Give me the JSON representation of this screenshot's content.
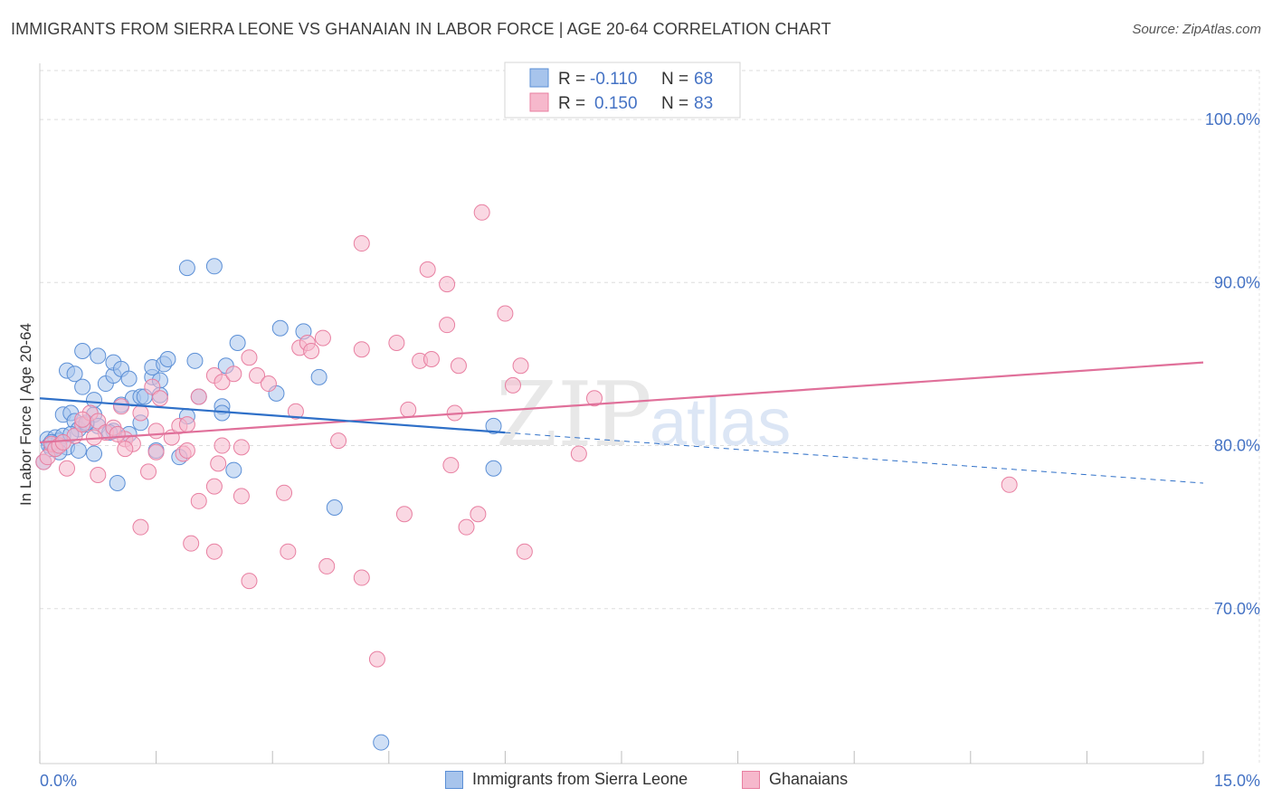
{
  "title": "IMMIGRANTS FROM SIERRA LEONE VS GHANAIAN IN LABOR FORCE | AGE 20-64 CORRELATION CHART",
  "source": "Source: ZipAtlas.com",
  "watermark": {
    "zip": "ZIP",
    "atlas": "atlas"
  },
  "colors": {
    "blue_fill": "#a7c4ec",
    "blue_stroke": "#5b8fd6",
    "blue_line": "#2f70c8",
    "pink_fill": "#f6b8cc",
    "pink_stroke": "#e87fa1",
    "pink_line": "#e0709a",
    "axis_text": "#4472c4",
    "grid": "#dddddd"
  },
  "legend": {
    "rows": [
      {
        "r_label": "R =",
        "r_value": "-0.110",
        "n_label": "N =",
        "n_value": "68"
      },
      {
        "r_label": "R =",
        "r_value": "0.150",
        "n_label": "N =",
        "n_value": "83"
      }
    ]
  },
  "bottom_legend": {
    "series1": "Immigrants from Sierra Leone",
    "series2": "Ghanaians"
  },
  "chart_data": {
    "type": "scatter",
    "title": "IMMIGRANTS FROM SIERRA LEONE VS GHANAIAN IN LABOR FORCE | AGE 20-64 CORRELATION CHART",
    "xlabel": "",
    "ylabel": "In Labor Force | Age 20-64",
    "xlim": [
      0,
      15
    ],
    "ylim": [
      60.5,
      103
    ],
    "x_tick_labels": [
      "0.0%",
      "15.0%"
    ],
    "y_ticks": [
      70,
      80,
      90,
      100
    ],
    "y_tick_labels": [
      "70.0%",
      "80.0%",
      "90.0%",
      "100.0%"
    ],
    "grid": true,
    "legend_position": "top-center",
    "series": [
      {
        "name": "Immigrants from Sierra Leone",
        "r": -0.11,
        "n": 68,
        "trend": {
          "x0": 0,
          "y0": 82.9,
          "x1": 6.0,
          "y1": 80.8,
          "dashed_to_x": 15.0,
          "dashed_to_y": 77.7
        },
        "points": [
          [
            0.05,
            79.0
          ],
          [
            0.1,
            80.4
          ],
          [
            0.12,
            80.0
          ],
          [
            0.15,
            79.8
          ],
          [
            0.2,
            80.5
          ],
          [
            0.25,
            80.3
          ],
          [
            0.3,
            80.6
          ],
          [
            0.35,
            79.9
          ],
          [
            0.3,
            81.9
          ],
          [
            0.4,
            82.0
          ],
          [
            0.45,
            81.5
          ],
          [
            0.5,
            81.0
          ],
          [
            0.6,
            81.3
          ],
          [
            0.7,
            81.9
          ],
          [
            0.35,
            84.6
          ],
          [
            0.45,
            84.4
          ],
          [
            0.55,
            85.8
          ],
          [
            0.75,
            85.5
          ],
          [
            0.55,
            83.6
          ],
          [
            0.7,
            82.8
          ],
          [
            0.85,
            83.8
          ],
          [
            0.95,
            84.3
          ],
          [
            0.95,
            85.1
          ],
          [
            1.05,
            84.7
          ],
          [
            1.15,
            84.1
          ],
          [
            1.05,
            82.5
          ],
          [
            1.2,
            82.9
          ],
          [
            1.3,
            83.0
          ],
          [
            1.45,
            84.2
          ],
          [
            1.55,
            84.0
          ],
          [
            1.45,
            84.8
          ],
          [
            1.6,
            85.0
          ],
          [
            1.65,
            85.3
          ],
          [
            1.55,
            83.1
          ],
          [
            1.3,
            81.4
          ],
          [
            1.15,
            80.7
          ],
          [
            0.95,
            80.9
          ],
          [
            0.75,
            81.2
          ],
          [
            0.7,
            79.5
          ],
          [
            0.5,
            79.7
          ],
          [
            0.25,
            79.6
          ],
          [
            1.5,
            79.7
          ],
          [
            1.8,
            79.3
          ],
          [
            1.9,
            81.8
          ],
          [
            2.05,
            83.0
          ],
          [
            2.0,
            85.2
          ],
          [
            2.4,
            84.9
          ],
          [
            2.35,
            82.4
          ],
          [
            2.35,
            82.0
          ],
          [
            2.5,
            78.5
          ],
          [
            2.55,
            86.3
          ],
          [
            3.1,
            87.2
          ],
          [
            3.05,
            83.2
          ],
          [
            3.4,
            87.0
          ],
          [
            3.6,
            84.2
          ],
          [
            3.8,
            76.2
          ],
          [
            1.9,
            90.9
          ],
          [
            2.25,
            91.0
          ],
          [
            5.85,
            81.2
          ],
          [
            5.85,
            78.6
          ],
          [
            1.0,
            77.7
          ],
          [
            4.4,
            61.8
          ],
          [
            0.2,
            79.8
          ],
          [
            0.6,
            81.4
          ],
          [
            1.35,
            83.0
          ],
          [
            0.9,
            80.8
          ],
          [
            0.15,
            80.2
          ],
          [
            0.4,
            80.7
          ]
        ]
      },
      {
        "name": "Ghanaians",
        "r": 0.15,
        "n": 83,
        "trend": {
          "x0": 0,
          "y0": 80.2,
          "x1": 15.0,
          "y1": 85.1
        },
        "points": [
          [
            0.05,
            79.0
          ],
          [
            0.1,
            79.3
          ],
          [
            0.15,
            80.1
          ],
          [
            0.2,
            79.8
          ],
          [
            0.25,
            80.0
          ],
          [
            0.35,
            78.6
          ],
          [
            0.45,
            80.6
          ],
          [
            0.55,
            81.3
          ],
          [
            0.65,
            82.0
          ],
          [
            0.75,
            81.5
          ],
          [
            0.85,
            80.8
          ],
          [
            0.95,
            81.1
          ],
          [
            1.05,
            82.4
          ],
          [
            1.1,
            80.4
          ],
          [
            1.2,
            80.1
          ],
          [
            1.3,
            82.0
          ],
          [
            1.1,
            79.8
          ],
          [
            0.75,
            78.2
          ],
          [
            1.45,
            83.6
          ],
          [
            1.55,
            82.9
          ],
          [
            1.5,
            80.9
          ],
          [
            1.7,
            80.5
          ],
          [
            1.8,
            81.2
          ],
          [
            1.9,
            81.3
          ],
          [
            1.85,
            79.5
          ],
          [
            1.5,
            79.6
          ],
          [
            1.4,
            78.4
          ],
          [
            1.9,
            79.7
          ],
          [
            2.05,
            83.0
          ],
          [
            2.25,
            84.3
          ],
          [
            2.35,
            83.9
          ],
          [
            2.5,
            84.4
          ],
          [
            2.7,
            85.4
          ],
          [
            2.8,
            84.3
          ],
          [
            2.95,
            83.8
          ],
          [
            3.3,
            82.1
          ],
          [
            3.35,
            86.0
          ],
          [
            3.45,
            86.3
          ],
          [
            3.5,
            85.8
          ],
          [
            3.65,
            86.6
          ],
          [
            4.15,
            85.9
          ],
          [
            4.6,
            86.3
          ],
          [
            4.75,
            82.2
          ],
          [
            4.9,
            85.2
          ],
          [
            5.05,
            85.3
          ],
          [
            5.25,
            87.4
          ],
          [
            5.35,
            82.0
          ],
          [
            5.4,
            84.9
          ],
          [
            5.0,
            90.8
          ],
          [
            5.25,
            89.9
          ],
          [
            4.15,
            92.4
          ],
          [
            5.7,
            94.3
          ],
          [
            6.0,
            88.1
          ],
          [
            6.1,
            83.7
          ],
          [
            6.2,
            84.9
          ],
          [
            7.15,
            82.9
          ],
          [
            6.95,
            79.5
          ],
          [
            5.3,
            78.8
          ],
          [
            5.65,
            75.8
          ],
          [
            5.5,
            75.0
          ],
          [
            4.7,
            75.8
          ],
          [
            4.15,
            71.9
          ],
          [
            3.7,
            72.6
          ],
          [
            3.2,
            73.5
          ],
          [
            2.7,
            71.7
          ],
          [
            2.25,
            73.5
          ],
          [
            1.95,
            74.0
          ],
          [
            2.05,
            76.6
          ],
          [
            2.25,
            77.5
          ],
          [
            2.6,
            76.9
          ],
          [
            3.15,
            77.1
          ],
          [
            2.6,
            79.9
          ],
          [
            2.35,
            80.0
          ],
          [
            2.3,
            78.9
          ],
          [
            3.85,
            80.3
          ],
          [
            1.3,
            75.0
          ],
          [
            4.35,
            66.9
          ],
          [
            6.25,
            73.5
          ],
          [
            12.5,
            77.6
          ],
          [
            0.7,
            80.5
          ],
          [
            0.3,
            80.2
          ],
          [
            0.55,
            81.6
          ],
          [
            1.0,
            80.7
          ]
        ]
      }
    ]
  }
}
